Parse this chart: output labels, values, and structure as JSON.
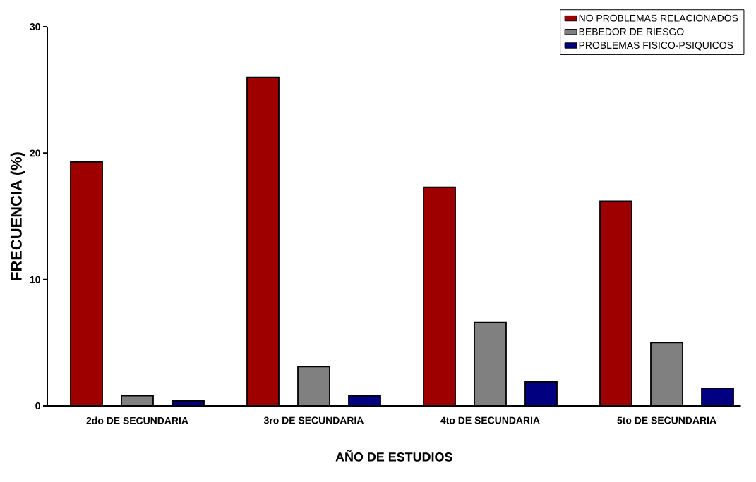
{
  "chart_data": {
    "type": "bar",
    "xlabel": "AÑO DE ESTUDIOS",
    "ylabel": "FRECUENCIA (%)",
    "categories": [
      "2do DE SECUNDARIA",
      "3ro DE SECUNDARIA",
      "4to DE SECUNDARIA",
      "5to DE SECUNDARIA"
    ],
    "series": [
      {
        "name": "NO PROBLEMAS RELACIONADOS",
        "color": "#9e0000",
        "values": [
          19.3,
          26.0,
          17.3,
          16.2
        ]
      },
      {
        "name": "BEBEDOR DE RIESGO",
        "color": "#808080",
        "values": [
          0.8,
          3.1,
          6.6,
          5.0
        ]
      },
      {
        "name": "PROBLEMAS FISICO-PSIQUICOS",
        "color": "#000080",
        "values": [
          0.4,
          0.8,
          1.9,
          1.4
        ]
      }
    ],
    "ylim": [
      0,
      30
    ],
    "yticks": [
      0,
      10,
      20,
      30
    ],
    "legend": "top right"
  }
}
